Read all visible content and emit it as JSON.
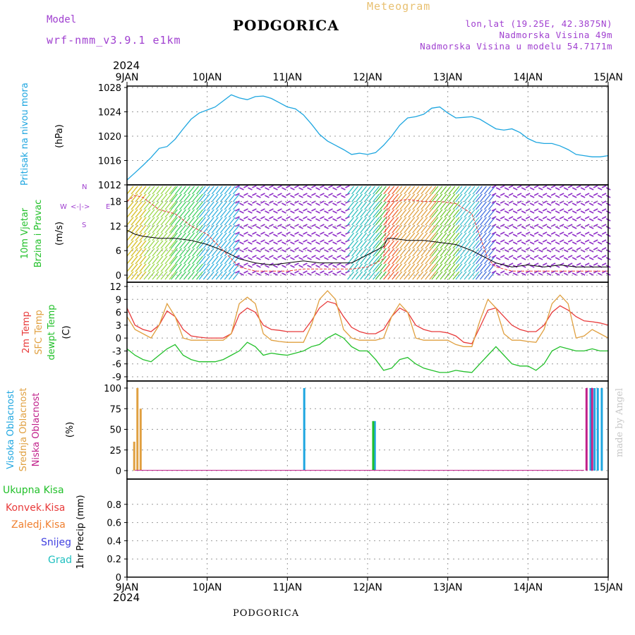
{
  "header": {
    "model_label": "Model",
    "model_name": "wrf-nmm_v3.9.1 e1km",
    "title": "PODGORICA",
    "meteogram": "Meteogram",
    "lonlat": "lon,lat (19.25E, 42.3875N)",
    "elevation": "Nadmorska Visina 49m",
    "model_elevation": "Nadmorska Visina u modelu 54.7171m",
    "footer_title": "PODGORICA",
    "watermark": "made by Angel",
    "year": "2024"
  },
  "colors": {
    "purple": "#a040d0",
    "cyan": "#1ea6e0",
    "orange": "#e0a040",
    "red": "#e83a3a",
    "green": "#22c02a",
    "magenta": "#c0208a",
    "blue": "#4040e0",
    "teal": "#20c0c0",
    "meteogram": "#e8c070"
  },
  "x_axis": {
    "ticks": [
      "9JAN",
      "10JAN",
      "11JAN",
      "12JAN",
      "13JAN",
      "14JAN",
      "15JAN"
    ],
    "days": [
      9,
      10,
      11,
      12,
      13,
      14,
      15
    ]
  },
  "chart_data": [
    {
      "type": "line",
      "panel": "pressure",
      "ylabel": "Pritisak na nivou mora",
      "unit": "(hPa)",
      "ylim": [
        1012,
        1028
      ],
      "yticks": [
        1012,
        1016,
        1020,
        1024,
        1028
      ],
      "series": [
        {
          "color": "#1ea6e0",
          "x": [
            9.0,
            9.1,
            9.2,
            9.3,
            9.4,
            9.5,
            9.6,
            9.7,
            9.8,
            9.9,
            10.0,
            10.1,
            10.2,
            10.3,
            10.4,
            10.5,
            10.6,
            10.7,
            10.8,
            10.9,
            11.0,
            11.1,
            11.2,
            11.3,
            11.4,
            11.5,
            11.6,
            11.7,
            11.8,
            11.9,
            12.0,
            12.1,
            12.2,
            12.3,
            12.4,
            12.5,
            12.6,
            12.7,
            12.8,
            12.9,
            13.0,
            13.1,
            13.2,
            13.3,
            13.4,
            13.5,
            13.6,
            13.7,
            13.8,
            13.9,
            14.0,
            14.1,
            14.2,
            14.3,
            14.4,
            14.5,
            14.6,
            14.7,
            14.8,
            14.9,
            15.0
          ],
          "values": [
            1012.8,
            1014.0,
            1015.2,
            1016.5,
            1018.0,
            1018.3,
            1019.5,
            1021.2,
            1022.8,
            1023.8,
            1024.3,
            1024.8,
            1025.8,
            1026.8,
            1026.3,
            1026.0,
            1026.5,
            1026.6,
            1026.2,
            1025.5,
            1024.8,
            1024.5,
            1023.5,
            1022.0,
            1020.3,
            1019.2,
            1018.5,
            1017.8,
            1017.0,
            1017.2,
            1017.0,
            1017.3,
            1018.5,
            1020.0,
            1021.8,
            1023.0,
            1023.2,
            1023.6,
            1024.6,
            1024.8,
            1023.8,
            1023.0,
            1023.1,
            1023.2,
            1022.8,
            1022.0,
            1021.2,
            1021.0,
            1021.2,
            1020.6,
            1019.6,
            1019.0,
            1018.8,
            1018.8,
            1018.4,
            1017.8,
            1017.0,
            1016.8,
            1016.6,
            1016.6,
            1016.8
          ]
        }
      ]
    },
    {
      "type": "line",
      "panel": "wind",
      "ylabel_1": "10m Vjetar",
      "ylabel_2": "Brzina i Pravac",
      "unit": "(m/s)",
      "compass": {
        "n": "N",
        "w": "W",
        "e": "E",
        "s": "S",
        "arrow": "<-|->"
      },
      "ylim": [
        0,
        20
      ],
      "yticks": [
        0,
        6,
        12,
        18
      ],
      "series": [
        {
          "color": "#000000",
          "x": [
            9.0,
            9.1,
            9.2,
            9.4,
            9.6,
            9.8,
            10.0,
            10.2,
            10.4,
            10.6,
            10.8,
            11.0,
            11.2,
            11.4,
            11.6,
            11.8,
            12.0,
            12.1,
            12.2,
            12.25,
            12.3,
            12.5,
            12.7,
            12.9,
            13.1,
            13.3,
            13.5,
            13.6,
            13.8,
            14.0,
            14.2,
            14.4,
            14.6,
            14.8,
            15.0
          ],
          "values": [
            11,
            10,
            9.5,
            9,
            9,
            8.5,
            7.5,
            6,
            4,
            3,
            2.5,
            3,
            3.5,
            3,
            3,
            3,
            5,
            6,
            7,
            9,
            9,
            8.5,
            8.5,
            8,
            7.5,
            6,
            4,
            3,
            2,
            2.5,
            2,
            2.5,
            2,
            2,
            2
          ]
        },
        {
          "color": "#e83a3a",
          "x": [
            9.0,
            9.1,
            9.2,
            9.4,
            9.6,
            9.8,
            10.0,
            10.2,
            10.4,
            10.6,
            10.8,
            11.0,
            11.2,
            11.4,
            11.6,
            11.8,
            12.0,
            12.1,
            12.2,
            12.25,
            12.3,
            12.5,
            12.7,
            12.9,
            13.1,
            13.3,
            13.5,
            13.6,
            13.8,
            14.0,
            14.2,
            14.4,
            14.6,
            14.8,
            15.0
          ],
          "values": [
            18,
            19.5,
            19,
            16,
            15,
            12,
            10,
            6,
            2,
            1,
            1,
            1,
            1.5,
            1.5,
            1.5,
            1.5,
            2,
            3,
            4,
            18,
            18,
            18.5,
            18,
            18,
            17.5,
            15,
            4,
            2,
            1,
            1,
            1,
            1,
            1,
            1,
            1
          ]
        }
      ]
    },
    {
      "type": "line",
      "panel": "temperature",
      "ylabel_1": "2m Temp",
      "ylabel_2": "SFC Temp",
      "ylabel_3": "dewpt Temp",
      "unit": "(C)",
      "ylim": [
        -9,
        12
      ],
      "yticks": [
        -9,
        -6,
        -3,
        0,
        3,
        6,
        9,
        12
      ],
      "series": [
        {
          "color": "#e83a3a",
          "x": [
            9.0,
            9.1,
            9.2,
            9.3,
            9.4,
            9.5,
            9.6,
            9.7,
            9.8,
            9.9,
            10.0,
            10.1,
            10.2,
            10.3,
            10.4,
            10.5,
            10.6,
            10.7,
            10.8,
            10.9,
            11.0,
            11.1,
            11.2,
            11.3,
            11.4,
            11.5,
            11.6,
            11.7,
            11.8,
            11.9,
            12.0,
            12.1,
            12.2,
            12.3,
            12.4,
            12.5,
            12.6,
            12.7,
            12.8,
            12.9,
            13.0,
            13.1,
            13.2,
            13.3,
            13.4,
            13.5,
            13.6,
            13.7,
            13.8,
            13.9,
            14.0,
            14.1,
            14.2,
            14.3,
            14.4,
            14.5,
            14.6,
            14.7,
            14.8,
            14.9,
            15.0
          ],
          "values": [
            7,
            3,
            2,
            1.5,
            3,
            6.3,
            5,
            2,
            0.5,
            0.2,
            0,
            0,
            0,
            1,
            5.5,
            7,
            6,
            3,
            2,
            1.8,
            1.5,
            1.5,
            1.5,
            4,
            7,
            8.5,
            8,
            5,
            2.5,
            1.5,
            1,
            1,
            2,
            5,
            7,
            6,
            3,
            2,
            1.5,
            1.5,
            1.2,
            0.5,
            -1,
            -1.3,
            2.5,
            6.5,
            7,
            5,
            3,
            2,
            1.5,
            1.5,
            3,
            6,
            7.5,
            6.5,
            5,
            4,
            3.8,
            3.5,
            3
          ]
        },
        {
          "color": "#e0a040",
          "x": [
            9.0,
            9.1,
            9.2,
            9.3,
            9.4,
            9.5,
            9.6,
            9.7,
            9.8,
            9.9,
            10.0,
            10.1,
            10.2,
            10.3,
            10.4,
            10.5,
            10.6,
            10.7,
            10.8,
            10.9,
            11.0,
            11.1,
            11.2,
            11.3,
            11.4,
            11.5,
            11.6,
            11.7,
            11.8,
            11.9,
            12.0,
            12.1,
            12.2,
            12.3,
            12.4,
            12.5,
            12.6,
            12.7,
            12.8,
            12.9,
            13.0,
            13.1,
            13.2,
            13.3,
            13.4,
            13.5,
            13.6,
            13.7,
            13.8,
            13.9,
            14.0,
            14.1,
            14.2,
            14.3,
            14.4,
            14.5,
            14.6,
            14.7,
            14.8,
            14.9,
            15.0
          ],
          "values": [
            5,
            2,
            1,
            0,
            3,
            8,
            5,
            0,
            -0.5,
            -0.5,
            -0.5,
            -0.5,
            -0.5,
            1,
            8,
            9.5,
            8,
            1,
            -0.5,
            -0.8,
            -1,
            -1,
            -1,
            3,
            9,
            11,
            9,
            2,
            0,
            -0.5,
            -0.5,
            -0.5,
            0,
            5,
            8,
            6,
            0,
            -0.5,
            -0.5,
            -0.5,
            -0.5,
            -1.5,
            -2,
            -2,
            4,
            9,
            7,
            1,
            -0.5,
            -0.5,
            -0.8,
            -1,
            2,
            8,
            10,
            8,
            0,
            0.5,
            2,
            1,
            0
          ]
        },
        {
          "color": "#22c02a",
          "x": [
            9.0,
            9.1,
            9.2,
            9.3,
            9.4,
            9.5,
            9.6,
            9.7,
            9.8,
            9.9,
            10.0,
            10.1,
            10.2,
            10.3,
            10.4,
            10.5,
            10.6,
            10.7,
            10.8,
            10.9,
            11.0,
            11.1,
            11.2,
            11.3,
            11.4,
            11.5,
            11.6,
            11.7,
            11.8,
            11.9,
            12.0,
            12.1,
            12.2,
            12.3,
            12.4,
            12.5,
            12.6,
            12.7,
            12.8,
            12.9,
            13.0,
            13.1,
            13.2,
            13.3,
            13.4,
            13.5,
            13.6,
            13.7,
            13.8,
            13.9,
            14.0,
            14.1,
            14.2,
            14.3,
            14.4,
            14.5,
            14.6,
            14.7,
            14.8,
            14.9,
            15.0
          ],
          "values": [
            -2.5,
            -4,
            -5,
            -5.5,
            -4,
            -2.5,
            -1.5,
            -4,
            -5,
            -5.5,
            -5.5,
            -5.5,
            -5,
            -4,
            -3,
            -1,
            -2,
            -4,
            -3.5,
            -3.8,
            -4,
            -3.5,
            -3,
            -2,
            -1.5,
            0,
            1,
            0,
            -2,
            -3,
            -3,
            -5,
            -7.5,
            -7,
            -5,
            -4.5,
            -6,
            -7,
            -7.5,
            -8,
            -8,
            -7.5,
            -7.8,
            -8,
            -6,
            -4,
            -2,
            -4,
            -6,
            -6.5,
            -6.5,
            -7.5,
            -6,
            -3,
            -2,
            -2.5,
            -3,
            -3,
            -2.5,
            -3,
            -3
          ]
        }
      ]
    },
    {
      "type": "bar",
      "panel": "cloud",
      "ylabel_1": "Visoka Oblacnost",
      "ylabel_2": "Srednja Oblacnost",
      "ylabel_3": "Niska Oblacnost",
      "unit": "(%)",
      "ylim": [
        0,
        100
      ],
      "yticks": [
        0,
        25,
        50,
        75,
        100
      ],
      "series": [
        {
          "color": "#e0a040",
          "x": [
            9.09,
            9.13,
            9.17
          ],
          "values": [
            35,
            100,
            75
          ]
        },
        {
          "color": "#1ea6e0",
          "x": [
            11.21,
            12.09,
            14.78,
            14.83,
            14.87,
            14.92
          ],
          "values": [
            100,
            60,
            100,
            100,
            100,
            100
          ]
        },
        {
          "color": "#22c02a",
          "x": [
            12.07
          ],
          "values": [
            60
          ]
        },
        {
          "color": "#c0208a",
          "x": [
            14.73,
            14.8
          ],
          "values": [
            100,
            100
          ]
        }
      ]
    },
    {
      "type": "bar",
      "panel": "precip",
      "ylabel": "1hr Precip (mm)",
      "legend": [
        "Ukupna Kisa",
        "Konvek.Kisa",
        "Zaledj.Kisa",
        "Snijeg",
        "Grad"
      ],
      "ylim": [
        0,
        1
      ],
      "yticks": [
        0,
        0.2,
        0.4,
        0.6,
        0.8
      ],
      "series": []
    }
  ]
}
